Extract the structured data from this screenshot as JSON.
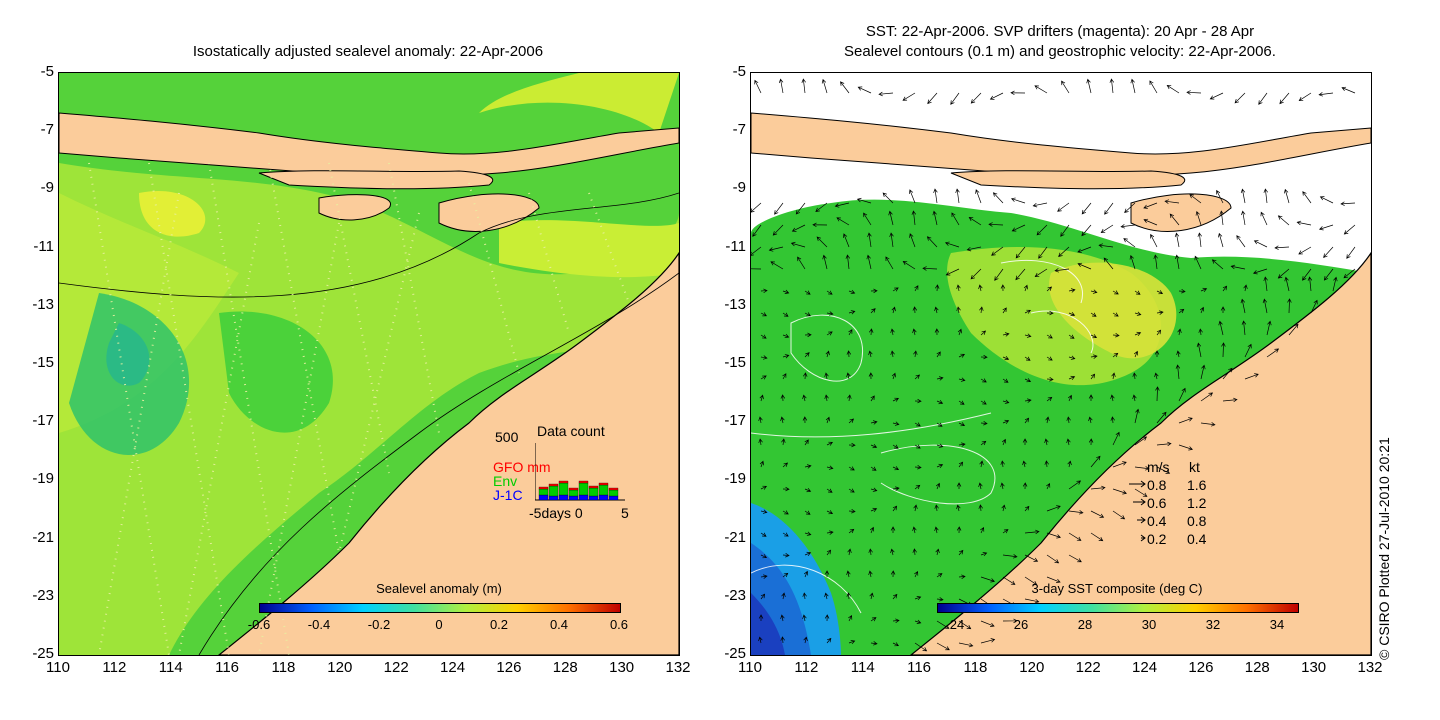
{
  "left_map": {
    "title": "Isostatically adjusted sealevel anomaly: 22-Apr-2006",
    "y_ticks": [
      "-5",
      "-7",
      "-9",
      "-11",
      "-13",
      "-15",
      "-17",
      "-19",
      "-21",
      "-23",
      "-25"
    ],
    "x_ticks": [
      "110",
      "112",
      "114",
      "116",
      "118",
      "120",
      "122",
      "124",
      "126",
      "128",
      "130",
      "132"
    ],
    "colorbar": {
      "title": "Sealevel anomaly (m)",
      "ticks": [
        "-0.6",
        "-0.4",
        "-0.2",
        "0",
        "0.2",
        "0.4",
        "0.6"
      ]
    },
    "data_count": {
      "title": "Data count",
      "max_label": "500",
      "series": [
        "GFO mm",
        "Env",
        "J-1C"
      ],
      "series_colors": [
        "#ff0000",
        "#00cc00",
        "#0000ff"
      ],
      "x_axis_label": "-5days 0",
      "x_end_label": "5"
    }
  },
  "right_map": {
    "title_line1": "SST: 22-Apr-2006. SVP drifters (magenta): 20 Apr - 28 Apr",
    "title_line2": "Sealevel contours (0.1 m) and geostrophic velocity: 22-Apr-2006.",
    "y_ticks": [
      "-5",
      "-7",
      "-9",
      "-11",
      "-13",
      "-15",
      "-17",
      "-19",
      "-21",
      "-23",
      "-25"
    ],
    "x_ticks": [
      "110",
      "112",
      "114",
      "116",
      "118",
      "120",
      "122",
      "124",
      "126",
      "128",
      "130",
      "132"
    ],
    "colorbar": {
      "title": "3-day SST composite (deg C)",
      "ticks": [
        "24",
        "26",
        "28",
        "30",
        "32",
        "34"
      ]
    },
    "velocity_legend": {
      "header_ms": "m/s",
      "header_kt": "kt",
      "rows": [
        {
          "ms": "0.8",
          "kt": "1.6"
        },
        {
          "ms": "0.6",
          "kt": "1.2"
        },
        {
          "ms": "0.4",
          "kt": "0.8"
        },
        {
          "ms": "0.2",
          "kt": "0.4"
        }
      ]
    }
  },
  "credit": "© CSIRO Plotted 27-Jul-2010 20:21",
  "colors": {
    "land": "#fbcc9b",
    "sea_green": "#33cc33",
    "sea_yellow": "#ccee33",
    "sst_blue": "#1a6fd6"
  }
}
